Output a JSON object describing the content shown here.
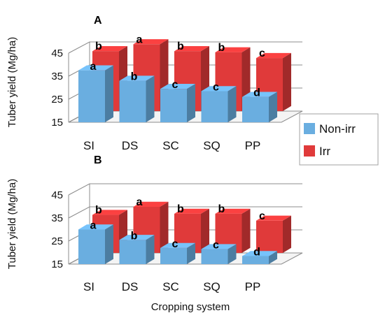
{
  "colors": {
    "non_irr": "#6aaee0",
    "irr": "#e03a3a",
    "axis": "#8c8c8c"
  },
  "xlabel": "Cropping system",
  "legend": [
    {
      "name": "Non-irr",
      "color": "#6aaee0"
    },
    {
      "name": "Irr",
      "color": "#e03a3a"
    }
  ],
  "chart_data": [
    {
      "type": "bar",
      "panel_label": "A",
      "ylabel": "Tuber yield (Mg/ha)",
      "ylim": [
        15,
        45
      ],
      "yticks": [
        15,
        25,
        35,
        45
      ],
      "categories": [
        "SI",
        "DS",
        "SC",
        "SQ",
        "PP"
      ],
      "series": [
        {
          "name": "Non-irr",
          "values": [
            37.5,
            33,
            29.5,
            28.5,
            26
          ],
          "letters": [
            "a",
            "b",
            "c",
            "c",
            "d"
          ]
        },
        {
          "name": "Irr",
          "values": [
            41,
            44,
            41,
            40.5,
            38
          ],
          "letters": [
            "b",
            "a",
            "b",
            "b",
            "c"
          ]
        }
      ],
      "grid": true,
      "legend_position": "right"
    },
    {
      "type": "bar",
      "panel_label": "B",
      "ylabel": "Tuber yield (Mg/ha)",
      "ylim": [
        15,
        45
      ],
      "yticks": [
        15,
        25,
        35,
        45
      ],
      "categories": [
        "SI",
        "DS",
        "SC",
        "SQ",
        "PP"
      ],
      "series": [
        {
          "name": "Non-irr",
          "values": [
            30,
            25.5,
            22,
            21.5,
            18.5
          ],
          "letters": [
            "a",
            "b",
            "c",
            "c",
            "d"
          ]
        },
        {
          "name": "Irr",
          "values": [
            31.5,
            35,
            32,
            32,
            29
          ],
          "letters": [
            "b",
            "a",
            "b",
            "b",
            "c"
          ]
        }
      ],
      "grid": true,
      "legend_position": "right"
    }
  ]
}
